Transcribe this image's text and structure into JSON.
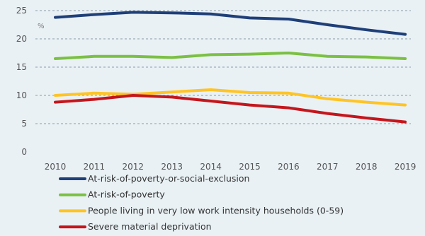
{
  "chart_data": {
    "type": "line",
    "title": "",
    "xlabel": "",
    "ylabel": "",
    "unit_label": "%",
    "x": [
      "2010",
      "2011",
      "2012",
      "2013",
      "2014",
      "2015",
      "2016",
      "2017",
      "2018",
      "2019"
    ],
    "ylim": [
      0,
      25
    ],
    "yticks": [
      0,
      5,
      10,
      15,
      20,
      25
    ],
    "grid": true,
    "legend_position": "bottom",
    "series": [
      {
        "name": "At-risk-of-poverty-or-social-exclusion",
        "color": "#1f3f78",
        "values": [
          23.8,
          24.3,
          24.7,
          24.6,
          24.4,
          23.7,
          23.5,
          22.5,
          21.6,
          20.8
        ]
      },
      {
        "name": "At-risk-of-poverty",
        "color": "#7bc043",
        "values": [
          16.5,
          16.9,
          16.9,
          16.7,
          17.2,
          17.3,
          17.5,
          16.9,
          16.8,
          16.5
        ]
      },
      {
        "name": "People living in very low work intensity households (0-59)",
        "color": "#ffc425",
        "values": [
          10.0,
          10.4,
          10.2,
          10.6,
          11.0,
          10.5,
          10.4,
          9.4,
          8.8,
          8.3
        ]
      },
      {
        "name": "Severe material deprivation",
        "color": "#c4161c",
        "values": [
          8.8,
          9.3,
          10.0,
          9.7,
          9.0,
          8.3,
          7.8,
          6.8,
          6.0,
          5.3
        ]
      }
    ]
  }
}
